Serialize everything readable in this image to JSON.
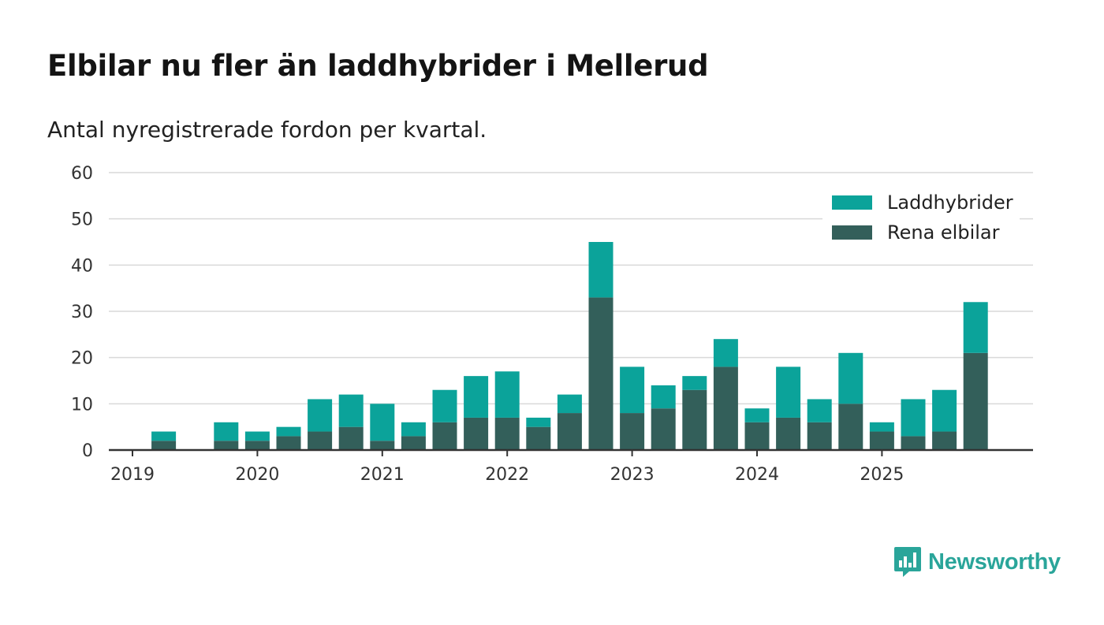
{
  "chart_data": {
    "type": "bar",
    "stacked": true,
    "title": "Elbilar nu fler än laddhybrider i Mellerud",
    "subtitle": "Antal nyregistrerade fordon per kvartal.",
    "xlabel": "",
    "ylabel": "",
    "ylim": [
      0,
      60
    ],
    "yticks": [
      "0",
      "10",
      "20",
      "30",
      "40",
      "50",
      "60"
    ],
    "xticks": [
      "2019",
      "2020",
      "2021",
      "2022",
      "2023",
      "2024",
      "2025"
    ],
    "grid": true,
    "legend_position": "top-right",
    "categories": [
      "2019 Q1",
      "2019 Q2",
      "2019 Q3",
      "2019 Q4",
      "2020 Q1",
      "2020 Q2",
      "2020 Q3",
      "2020 Q4",
      "2021 Q1",
      "2021 Q2",
      "2021 Q3",
      "2021 Q4",
      "2022 Q1",
      "2022 Q2",
      "2022 Q3",
      "2022 Q4",
      "2023 Q1",
      "2023 Q2",
      "2023 Q3",
      "2023 Q4",
      "2024 Q1",
      "2024 Q2",
      "2024 Q3",
      "2024 Q4",
      "2025 Q1",
      "2025 Q2",
      "2025 Q3",
      "2025 Q4"
    ],
    "series": [
      {
        "name": "Rena elbilar",
        "color": "#335f5a",
        "values": [
          0,
          2,
          0,
          2,
          2,
          3,
          4,
          5,
          2,
          3,
          6,
          7,
          7,
          5,
          8,
          33,
          8,
          9,
          13,
          18,
          6,
          7,
          6,
          10,
          4,
          3,
          4,
          21
        ]
      },
      {
        "name": "Laddhybrider",
        "color": "#0ba39a",
        "values": [
          0,
          2,
          0,
          4,
          2,
          2,
          7,
          7,
          8,
          3,
          7,
          9,
          10,
          2,
          4,
          12,
          10,
          5,
          3,
          6,
          3,
          11,
          5,
          11,
          2,
          8,
          9,
          11
        ]
      }
    ],
    "legend_order": [
      "Laddhybrider",
      "Rena elbilar"
    ]
  },
  "brand": {
    "name": "Newsworthy",
    "color": "#2aa59a"
  }
}
